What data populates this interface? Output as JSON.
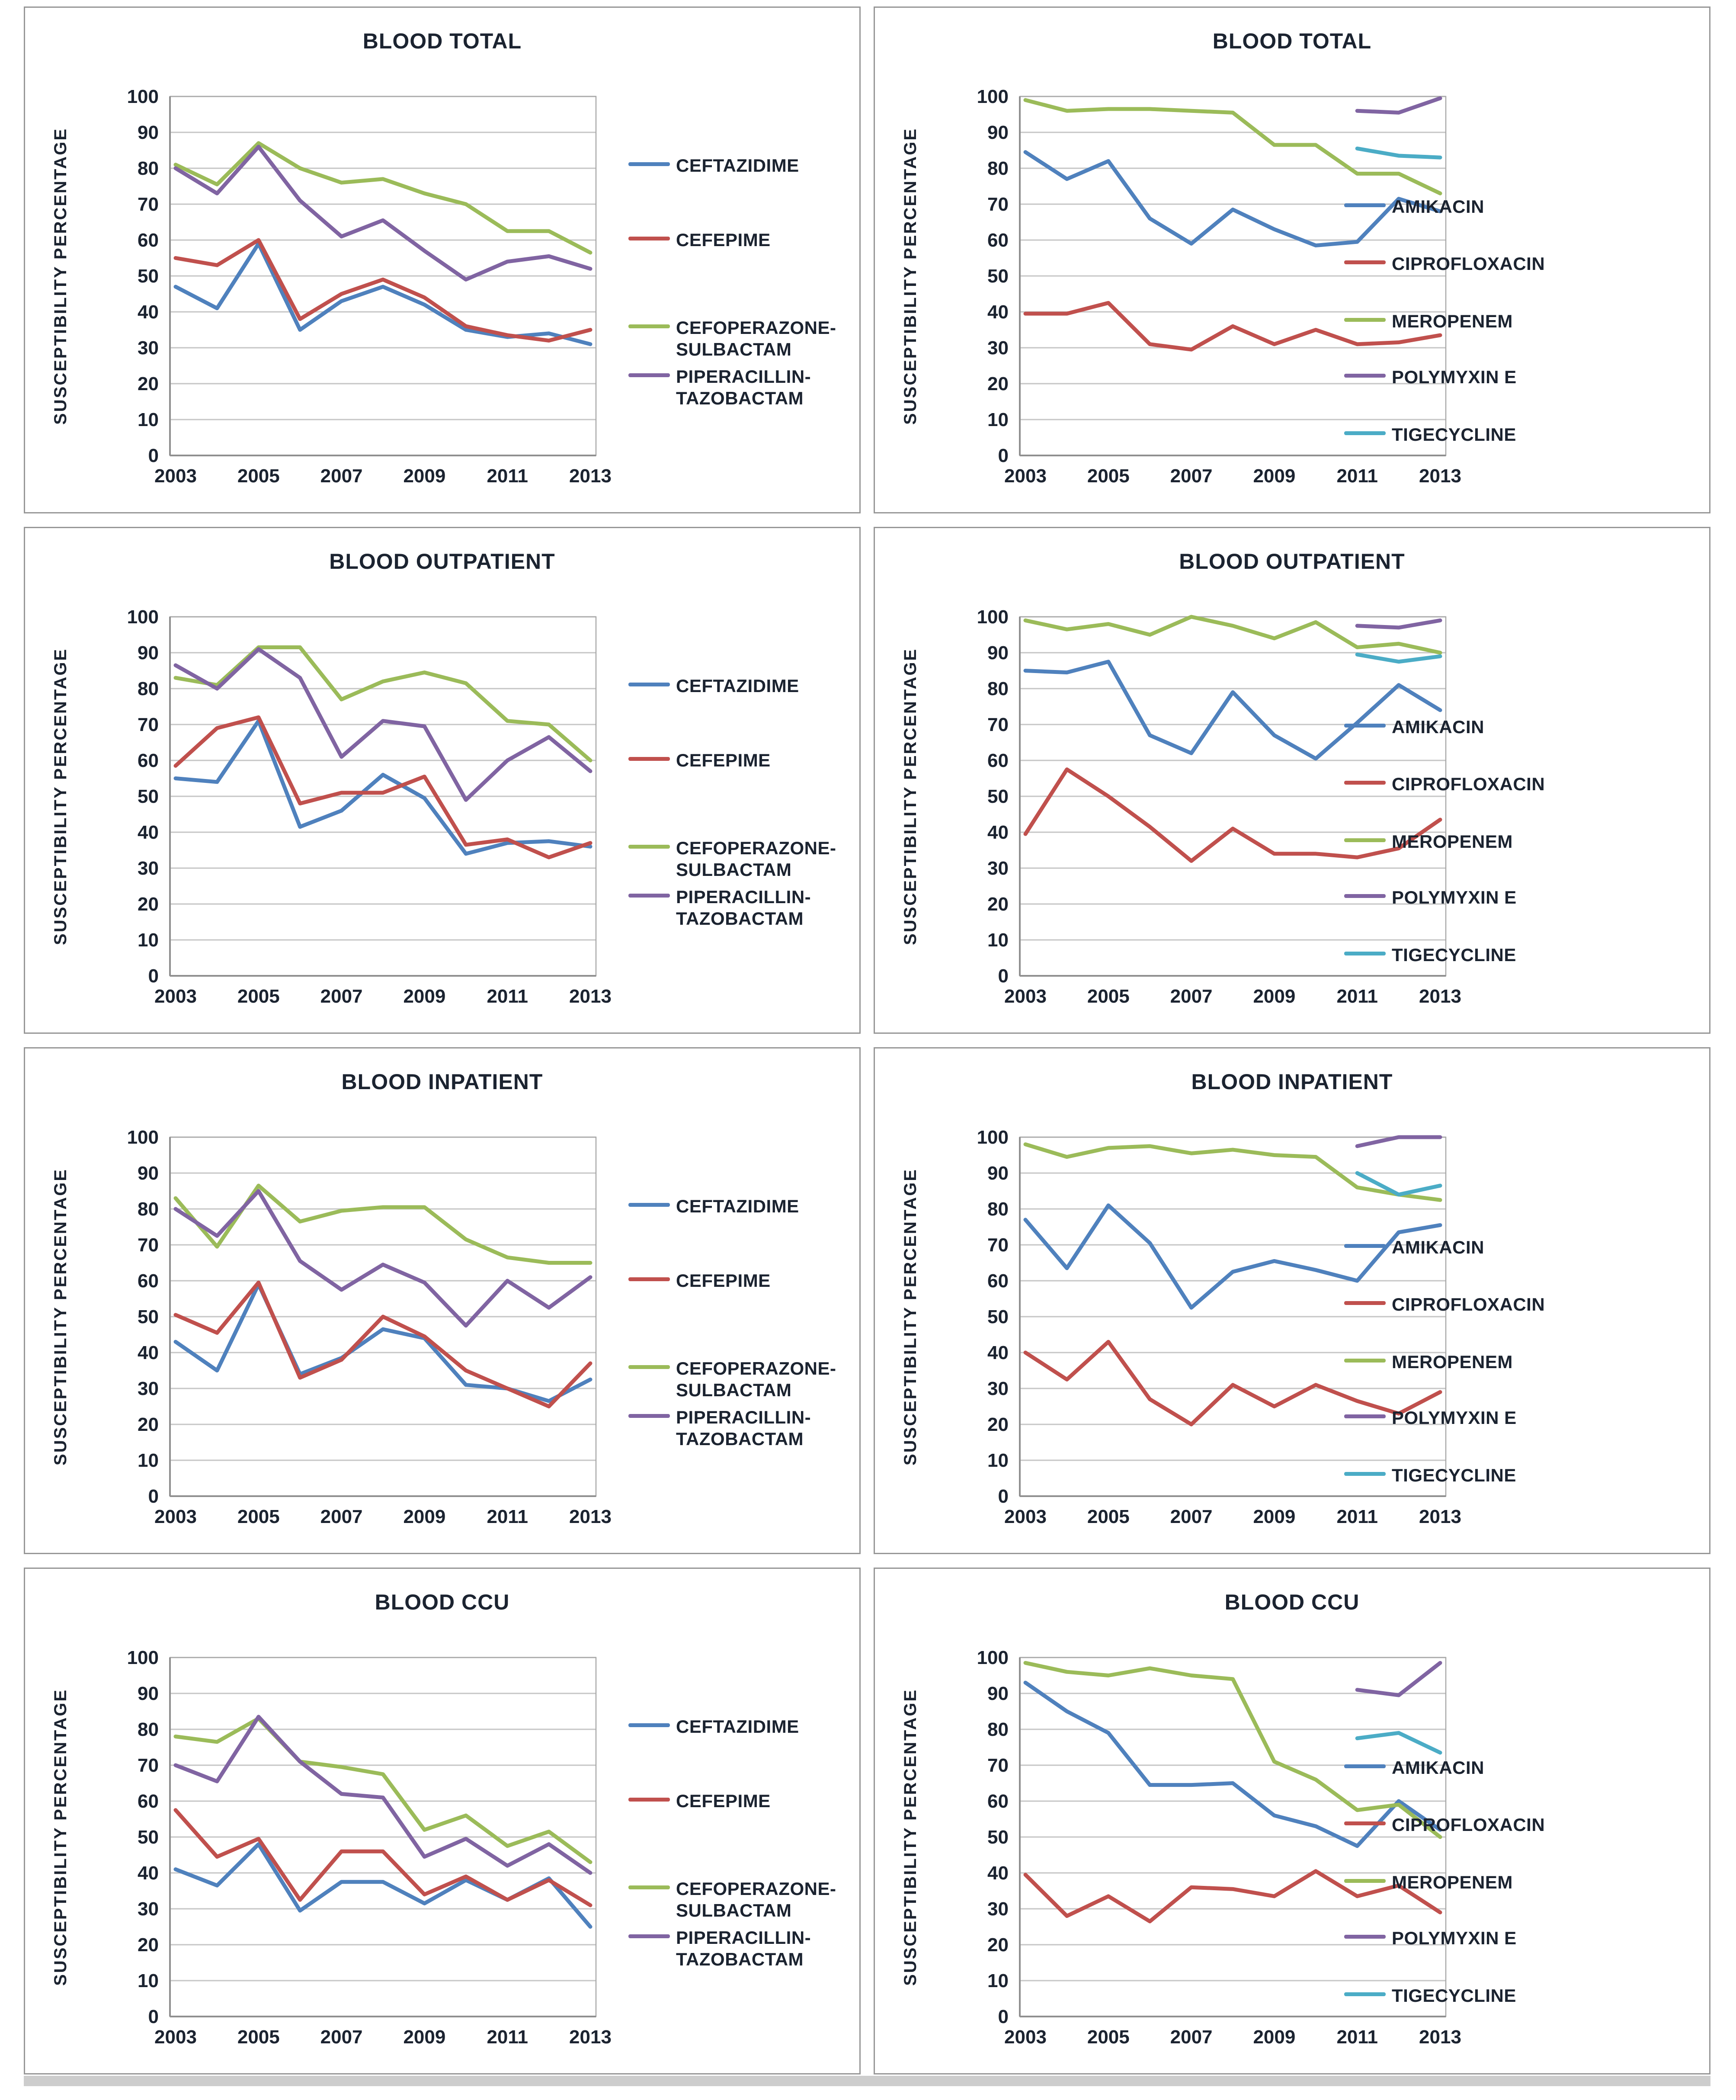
{
  "axis": {
    "y_label": "SUSCEPTIBILITY PERCENTAGE",
    "y_min": 0,
    "y_max": 100,
    "y_step": 10,
    "x_tick_labels": [
      "2003",
      "2005",
      "2007",
      "2009",
      "2011",
      "2013"
    ]
  },
  "palette": {
    "blue": "#4F81BD",
    "red": "#C0504D",
    "green": "#9BBB59",
    "purple": "#8064A2",
    "cyan": "#4BACC6",
    "grid": "#C6C6C6",
    "frame": "#A8A8A8",
    "text": "#1B2330"
  },
  "chart_data": [
    {
      "type": "line",
      "title": "BLOOD TOTAL",
      "x": [
        2003,
        2004,
        2005,
        2006,
        2007,
        2008,
        2009,
        2010,
        2011,
        2012,
        2013
      ],
      "ylim": [
        0,
        100
      ],
      "series": [
        {
          "name": "CEFTAZIDIME",
          "legend": "CEFTAZIDIME",
          "color": "#4F81BD",
          "values": [
            47,
            41,
            59,
            35,
            43,
            47,
            42,
            35,
            33,
            34,
            31
          ]
        },
        {
          "name": "CEFEPIME",
          "legend": "CEFEPIME",
          "color": "#C0504D",
          "values": [
            55,
            53,
            60,
            38,
            45,
            49,
            44,
            36,
            33.5,
            32,
            35
          ]
        },
        {
          "name": "CEFOPERAZONE-SULBACTAM",
          "legend": "CEFOPERAZONE-\nSULBACTAM",
          "color": "#9BBB59",
          "values": [
            81,
            75.5,
            87,
            80,
            76,
            77,
            73,
            70,
            62.5,
            62.5,
            56.5
          ]
        },
        {
          "name": "PIPERACILLIN-TAZOBACTAM",
          "legend": "PIPERACILLIN-\nTAZOBACTAM",
          "color": "#8064A2",
          "values": [
            80,
            73,
            86,
            71,
            61,
            65.5,
            57,
            49,
            54,
            55.5,
            52
          ]
        }
      ]
    },
    {
      "type": "line",
      "title": "BLOOD TOTAL",
      "x": [
        2003,
        2004,
        2005,
        2006,
        2007,
        2008,
        2009,
        2010,
        2011,
        2012,
        2013
      ],
      "ylim": [
        0,
        100
      ],
      "series": [
        {
          "name": "AMIKACIN",
          "legend": "AMIKACIN",
          "color": "#4F81BD",
          "values": [
            84.5,
            77,
            82,
            66,
            59,
            68.5,
            63,
            58.5,
            59.5,
            71.5,
            68
          ]
        },
        {
          "name": "CIPROFLOXACIN",
          "legend": "CIPROFLOXACIN",
          "color": "#C0504D",
          "values": [
            39.5,
            39.5,
            42.5,
            31,
            29.5,
            36,
            31,
            35,
            31,
            31.5,
            33.5
          ]
        },
        {
          "name": "MEROPENEM",
          "legend": "MEROPENEM",
          "color": "#9BBB59",
          "values": [
            99,
            96,
            96.5,
            96.5,
            96,
            95.5,
            86.5,
            86.5,
            78.5,
            78.5,
            73
          ]
        },
        {
          "name": "POLYMYXIN E",
          "legend": "POLYMYXIN E",
          "color": "#8064A2",
          "values": [
            null,
            null,
            null,
            null,
            null,
            null,
            null,
            null,
            96,
            95.5,
            99.5
          ]
        },
        {
          "name": "TIGECYCLINE",
          "legend": "TIGECYCLINE",
          "color": "#4BACC6",
          "values": [
            null,
            null,
            null,
            null,
            null,
            null,
            null,
            null,
            85.5,
            83.5,
            83
          ]
        }
      ]
    },
    {
      "type": "line",
      "title": "BLOOD OUTPATIENT",
      "x": [
        2003,
        2004,
        2005,
        2006,
        2007,
        2008,
        2009,
        2010,
        2011,
        2012,
        2013
      ],
      "ylim": [
        0,
        100
      ],
      "series": [
        {
          "name": "CEFTAZIDIME",
          "legend": "CEFTAZIDIME",
          "color": "#4F81BD",
          "values": [
            55,
            54,
            71,
            41.5,
            46,
            56,
            49.5,
            34,
            37,
            37.5,
            36
          ]
        },
        {
          "name": "CEFEPIME",
          "legend": "CEFEPIME",
          "color": "#C0504D",
          "values": [
            58.5,
            69,
            72,
            48,
            51,
            51,
            55.5,
            36.5,
            38,
            33,
            37
          ]
        },
        {
          "name": "CEFOPERAZONE-SULBACTAM",
          "legend": "CEFOPERAZONE-\nSULBACTAM",
          "color": "#9BBB59",
          "values": [
            83,
            81,
            91.5,
            91.5,
            77,
            82,
            84.5,
            81.5,
            71,
            70,
            60
          ]
        },
        {
          "name": "PIPERACILLIN-TAZOBACTAM",
          "legend": "PIPERACILLIN-\nTAZOBACTAM",
          "color": "#8064A2",
          "values": [
            86.5,
            80,
            91,
            83,
            61,
            71,
            69.5,
            49,
            60,
            66.5,
            57
          ]
        }
      ]
    },
    {
      "type": "line",
      "title": "BLOOD OUTPATIENT",
      "x": [
        2003,
        2004,
        2005,
        2006,
        2007,
        2008,
        2009,
        2010,
        2011,
        2012,
        2013
      ],
      "ylim": [
        0,
        100
      ],
      "series": [
        {
          "name": "AMIKACIN",
          "legend": "AMIKACIN",
          "color": "#4F81BD",
          "values": [
            85,
            84.5,
            87.5,
            67,
            62,
            79,
            67,
            60.5,
            70.5,
            81,
            74
          ]
        },
        {
          "name": "CIPROFLOXACIN",
          "legend": "CIPROFLOXACIN",
          "color": "#C0504D",
          "values": [
            39.5,
            57.5,
            50,
            41.5,
            32,
            41,
            34,
            34,
            33,
            35.5,
            43.5
          ]
        },
        {
          "name": "MEROPENEM",
          "legend": "MEROPENEM",
          "color": "#9BBB59",
          "values": [
            99,
            96.5,
            98,
            95,
            100,
            97.5,
            94,
            98.5,
            91.5,
            92.5,
            90
          ]
        },
        {
          "name": "POLYMYXIN E",
          "legend": "POLYMYXIN E",
          "color": "#8064A2",
          "values": [
            null,
            null,
            null,
            null,
            null,
            null,
            null,
            null,
            97.5,
            97,
            99
          ]
        },
        {
          "name": "TIGECYCLINE",
          "legend": "TIGECYCLINE",
          "color": "#4BACC6",
          "values": [
            null,
            null,
            null,
            null,
            null,
            null,
            null,
            null,
            89.5,
            87.5,
            89
          ]
        }
      ]
    },
    {
      "type": "line",
      "title": "BLOOD INPATIENT",
      "x": [
        2003,
        2004,
        2005,
        2006,
        2007,
        2008,
        2009,
        2010,
        2011,
        2012,
        2013
      ],
      "ylim": [
        0,
        100
      ],
      "series": [
        {
          "name": "CEFTAZIDIME",
          "legend": "CEFTAZIDIME",
          "color": "#4F81BD",
          "values": [
            43,
            35,
            59,
            34,
            38.5,
            46.5,
            44,
            31,
            30,
            26.5,
            32.5
          ]
        },
        {
          "name": "CEFEPIME",
          "legend": "CEFEPIME",
          "color": "#C0504D",
          "values": [
            50.5,
            45.5,
            59.5,
            33,
            38,
            50,
            44.5,
            35,
            30,
            25,
            37
          ]
        },
        {
          "name": "CEFOPERAZONE-SULBACTAM",
          "legend": "CEFOPERAZONE-\nSULBACTAM",
          "color": "#9BBB59",
          "values": [
            83,
            69.5,
            86.5,
            76.5,
            79.5,
            80.5,
            80.5,
            71.5,
            66.5,
            65,
            65
          ]
        },
        {
          "name": "PIPERACILLIN-TAZOBACTAM",
          "legend": "PIPERACILLIN-\nTAZOBACTAM",
          "color": "#8064A2",
          "values": [
            80,
            72.5,
            85,
            65.5,
            57.5,
            64.5,
            59.5,
            47.5,
            60,
            52.5,
            61
          ]
        }
      ]
    },
    {
      "type": "line",
      "title": "BLOOD INPATIENT",
      "x": [
        2003,
        2004,
        2005,
        2006,
        2007,
        2008,
        2009,
        2010,
        2011,
        2012,
        2013
      ],
      "ylim": [
        0,
        100
      ],
      "series": [
        {
          "name": "AMIKACIN",
          "legend": "AMIKACIN",
          "color": "#4F81BD",
          "values": [
            77,
            63.5,
            81,
            70.5,
            52.5,
            62.5,
            65.5,
            63,
            60,
            73.5,
            75.5
          ]
        },
        {
          "name": "CIPROFLOXACIN",
          "legend": "CIPROFLOXACIN",
          "color": "#C0504D",
          "values": [
            40,
            32.5,
            43,
            27,
            20,
            31,
            25,
            31,
            26.5,
            23,
            29
          ]
        },
        {
          "name": "MEROPENEM",
          "legend": "MEROPENEM",
          "color": "#9BBB59",
          "values": [
            98,
            94.5,
            97,
            97.5,
            95.5,
            96.5,
            95,
            94.5,
            86,
            84,
            82.5
          ]
        },
        {
          "name": "POLYMYXIN E",
          "legend": "POLYMYXIN E",
          "color": "#8064A2",
          "values": [
            null,
            null,
            null,
            null,
            null,
            null,
            null,
            null,
            97.5,
            100,
            100
          ]
        },
        {
          "name": "TIGECYCLINE",
          "legend": "TIGECYCLINE",
          "color": "#4BACC6",
          "values": [
            null,
            null,
            null,
            null,
            null,
            null,
            null,
            null,
            90,
            84,
            86.5
          ]
        }
      ]
    },
    {
      "type": "line",
      "title": "BLOOD CCU",
      "x": [
        2003,
        2004,
        2005,
        2006,
        2007,
        2008,
        2009,
        2010,
        2011,
        2012,
        2013
      ],
      "ylim": [
        0,
        100
      ],
      "series": [
        {
          "name": "CEFTAZIDIME",
          "legend": "CEFTAZIDIME",
          "color": "#4F81BD",
          "values": [
            41,
            36.5,
            48,
            29.5,
            37.5,
            37.5,
            31.5,
            38,
            32.5,
            38.5,
            25
          ]
        },
        {
          "name": "CEFEPIME",
          "legend": "CEFEPIME",
          "color": "#C0504D",
          "values": [
            57.5,
            44.5,
            49.5,
            32.5,
            46,
            46,
            34,
            39,
            32.5,
            38,
            31
          ]
        },
        {
          "name": "CEFOPERAZONE-SULBACTAM",
          "legend": "CEFOPERAZONE-\nSULBACTAM",
          "color": "#9BBB59",
          "values": [
            78,
            76.5,
            83,
            71,
            69.5,
            67.5,
            52,
            56,
            47.5,
            51.5,
            43
          ]
        },
        {
          "name": "PIPERACILLIN-TAZOBACTAM",
          "legend": "PIPERACILLIN-\nTAZOBACTAM",
          "color": "#8064A2",
          "values": [
            70,
            65.5,
            83.5,
            71,
            62,
            61,
            44.5,
            49.5,
            42,
            48,
            40
          ]
        }
      ]
    },
    {
      "type": "line",
      "title": "BLOOD CCU",
      "x": [
        2003,
        2004,
        2005,
        2006,
        2007,
        2008,
        2009,
        2010,
        2011,
        2012,
        2013
      ],
      "ylim": [
        0,
        100
      ],
      "series": [
        {
          "name": "AMIKACIN",
          "legend": "AMIKACIN",
          "color": "#4F81BD",
          "values": [
            93,
            85,
            79,
            64.5,
            64.5,
            65,
            56,
            53,
            47.5,
            60,
            52
          ]
        },
        {
          "name": "CIPROFLOXACIN",
          "legend": "CIPROFLOXACIN",
          "color": "#C0504D",
          "values": [
            39.5,
            28,
            33.5,
            26.5,
            36,
            35.5,
            33.5,
            40.5,
            33.5,
            36.5,
            29
          ]
        },
        {
          "name": "MEROPENEM",
          "legend": "MEROPENEM",
          "color": "#9BBB59",
          "values": [
            98.5,
            96,
            95,
            97,
            95,
            94,
            71,
            66,
            57.5,
            59,
            50
          ]
        },
        {
          "name": "POLYMYXIN E",
          "legend": "POLYMYXIN E",
          "color": "#8064A2",
          "values": [
            null,
            null,
            null,
            null,
            null,
            null,
            null,
            null,
            91,
            89.5,
            98.5
          ]
        },
        {
          "name": "TIGECYCLINE",
          "legend": "TIGECYCLINE",
          "color": "#4BACC6",
          "values": [
            null,
            null,
            null,
            null,
            null,
            null,
            null,
            null,
            77.5,
            79,
            73.5
          ]
        }
      ]
    }
  ]
}
